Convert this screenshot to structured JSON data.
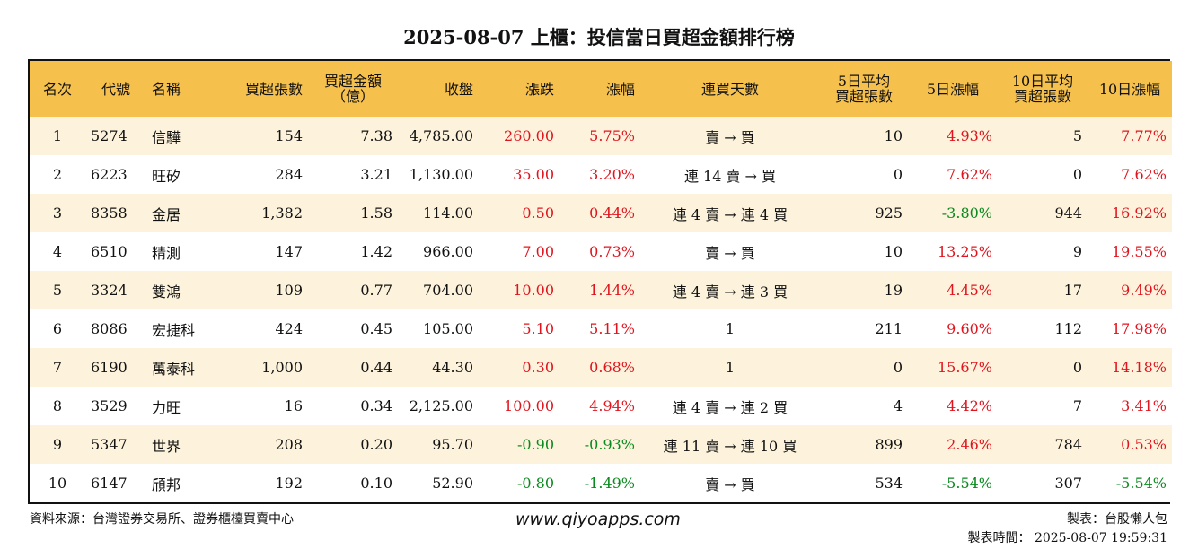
{
  "title": "2025-08-07 上櫃：投信當日買超金額排行榜",
  "headers": [
    {
      "l1": "名次",
      "l2": ""
    },
    {
      "l1": "代號",
      "l2": ""
    },
    {
      "l1": "名稱",
      "l2": ""
    },
    {
      "l1": "買超張數",
      "l2": ""
    },
    {
      "l1": "買超金額",
      "l2": "（億）"
    },
    {
      "l1": "收盤",
      "l2": ""
    },
    {
      "l1": "漲跌",
      "l2": ""
    },
    {
      "l1": "漲幅",
      "l2": ""
    },
    {
      "l1": "連買天數",
      "l2": ""
    },
    {
      "l1": "5日平均",
      "l2": "買超張數"
    },
    {
      "l1": "5日漲幅",
      "l2": ""
    },
    {
      "l1": "10日平均",
      "l2": "買超張數"
    },
    {
      "l1": "10日漲幅",
      "l2": ""
    }
  ],
  "colors": {
    "up": "#e0141e",
    "down": "#0a8a1f",
    "header": "#f6c04d",
    "stripe": "#fdf3dc"
  },
  "rows": [
    {
      "rank": "1",
      "code": "5274",
      "name": "信驊",
      "shares": "154",
      "amount": "7.38",
      "close": "4,785.00",
      "change": "260.00",
      "pct": "5.75%",
      "streak": "賣 → 買",
      "avg5": "10",
      "pct5": "4.93%",
      "avg10": "5",
      "pct10": "7.77%"
    },
    {
      "rank": "2",
      "code": "6223",
      "name": "旺矽",
      "shares": "284",
      "amount": "3.21",
      "close": "1,130.00",
      "change": "35.00",
      "pct": "3.20%",
      "streak": "連 14 賣 → 買",
      "avg5": "0",
      "pct5": "7.62%",
      "avg10": "0",
      "pct10": "7.62%"
    },
    {
      "rank": "3",
      "code": "8358",
      "name": "金居",
      "shares": "1,382",
      "amount": "1.58",
      "close": "114.00",
      "change": "0.50",
      "pct": "0.44%",
      "streak": "連 4 賣 → 連 4 買",
      "avg5": "925",
      "pct5": "-3.80%",
      "avg10": "944",
      "pct10": "16.92%"
    },
    {
      "rank": "4",
      "code": "6510",
      "name": "精測",
      "shares": "147",
      "amount": "1.42",
      "close": "966.00",
      "change": "7.00",
      "pct": "0.73%",
      "streak": "賣 → 買",
      "avg5": "10",
      "pct5": "13.25%",
      "avg10": "9",
      "pct10": "19.55%"
    },
    {
      "rank": "5",
      "code": "3324",
      "name": "雙鴻",
      "shares": "109",
      "amount": "0.77",
      "close": "704.00",
      "change": "10.00",
      "pct": "1.44%",
      "streak": "連 4 賣 → 連 3 買",
      "avg5": "19",
      "pct5": "4.45%",
      "avg10": "17",
      "pct10": "9.49%"
    },
    {
      "rank": "6",
      "code": "8086",
      "name": "宏捷科",
      "shares": "424",
      "amount": "0.45",
      "close": "105.00",
      "change": "5.10",
      "pct": "5.11%",
      "streak": "1",
      "avg5": "211",
      "pct5": "9.60%",
      "avg10": "112",
      "pct10": "17.98%"
    },
    {
      "rank": "7",
      "code": "6190",
      "name": "萬泰科",
      "shares": "1,000",
      "amount": "0.44",
      "close": "44.30",
      "change": "0.30",
      "pct": "0.68%",
      "streak": "1",
      "avg5": "0",
      "pct5": "15.67%",
      "avg10": "0",
      "pct10": "14.18%"
    },
    {
      "rank": "8",
      "code": "3529",
      "name": "力旺",
      "shares": "16",
      "amount": "0.34",
      "close": "2,125.00",
      "change": "100.00",
      "pct": "4.94%",
      "streak": "連 4 賣 → 連 2 買",
      "avg5": "4",
      "pct5": "4.42%",
      "avg10": "7",
      "pct10": "3.41%"
    },
    {
      "rank": "9",
      "code": "5347",
      "name": "世界",
      "shares": "208",
      "amount": "0.20",
      "close": "95.70",
      "change": "-0.90",
      "pct": "-0.93%",
      "streak": "連 11 賣 → 連 10 買",
      "avg5": "899",
      "pct5": "2.46%",
      "avg10": "784",
      "pct10": "0.53%"
    },
    {
      "rank": "10",
      "code": "6147",
      "name": "頎邦",
      "shares": "192",
      "amount": "0.10",
      "close": "52.90",
      "change": "-0.80",
      "pct": "-1.49%",
      "streak": "賣 → 買",
      "avg5": "534",
      "pct5": "-5.54%",
      "avg10": "307",
      "pct10": "-5.54%"
    }
  ],
  "footer": {
    "source": "資料來源：台灣證券交易所、證券櫃檯買賣中心",
    "website": "www.qiyoapps.com",
    "maker": "製表：台股懶人包",
    "time": "製表時間： 2025-08-07 19:59:31"
  }
}
